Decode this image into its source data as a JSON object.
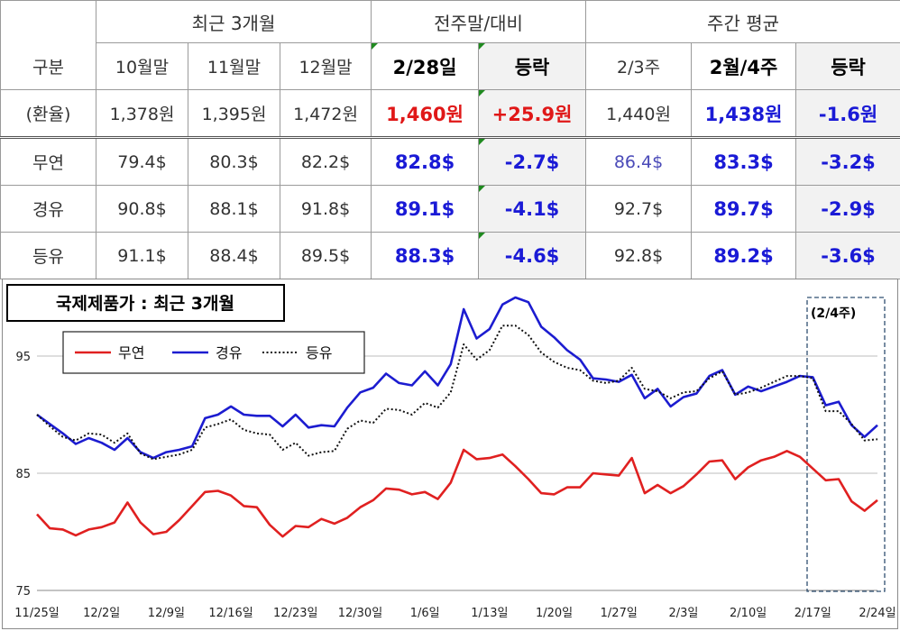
{
  "table": {
    "groups": [
      "최근 3개월",
      "전주말/대비",
      "주간 평균"
    ],
    "header": [
      "구분",
      "10월말",
      "11월말",
      "12월말",
      "2/28일",
      "등락",
      "2/3주",
      "2월/4주",
      "등락"
    ],
    "rows": [
      {
        "label": "(환율)",
        "cells": [
          "1,378원",
          "1,395원",
          "1,472원",
          "1,460원",
          "+25.9원",
          "1,440원",
          "1,438원",
          "-1.6원"
        ]
      },
      {
        "label": "무연",
        "cells": [
          "79.4$",
          "80.3$",
          "82.2$",
          "82.8$",
          "-2.7$",
          "86.4$",
          "83.3$",
          "-3.2$"
        ]
      },
      {
        "label": "경유",
        "cells": [
          "90.8$",
          "88.1$",
          "91.8$",
          "89.1$",
          "-4.1$",
          "92.7$",
          "89.7$",
          "-2.9$"
        ]
      },
      {
        "label": "등유",
        "cells": [
          "91.1$",
          "88.4$",
          "89.5$",
          "88.3$",
          "-4.6$",
          "92.8$",
          "89.2$",
          "-3.6$"
        ]
      }
    ]
  },
  "chart_data": {
    "type": "line",
    "title": "국제제품가 : 최근 3개월",
    "annotation": "(2/4주)",
    "legend_position": "top-left",
    "grid": true,
    "ylim": [
      75,
      100
    ],
    "yticks": [
      75,
      85,
      95
    ],
    "xticks": [
      "11/25일",
      "12/2일",
      "12/9일",
      "12/16일",
      "12/23일",
      "12/30일",
      "1/6일",
      "1/13일",
      "1/20일",
      "1/27일",
      "2/3일",
      "2/10일",
      "2/17일",
      "2/24일"
    ],
    "colors": {
      "무연": "#e02020",
      "경유": "#1c1cd0",
      "등유": "#111111"
    },
    "series": [
      {
        "name": "무연",
        "style": "solid",
        "values": [
          81.5,
          80.3,
          80.2,
          79.7,
          80.2,
          80.4,
          80.8,
          82.5,
          80.8,
          79.8,
          80.0,
          81.0,
          82.2,
          83.4,
          83.5,
          83.1,
          82.2,
          82.1,
          80.6,
          79.6,
          80.5,
          80.4,
          81.1,
          80.7,
          81.2,
          82.1,
          82.7,
          83.7,
          83.6,
          83.2,
          83.4,
          82.8,
          84.2,
          87.0,
          86.2,
          86.3,
          86.6,
          85.6,
          84.5,
          83.3,
          83.2,
          83.8,
          83.8,
          85.0,
          84.9,
          84.8,
          86.3,
          83.3,
          84.0,
          83.3,
          83.9,
          84.9,
          86.0,
          86.1,
          84.5,
          85.5,
          86.1,
          86.4,
          86.9,
          86.4,
          85.4,
          84.4,
          84.5,
          82.6,
          81.8,
          82.7
        ]
      },
      {
        "name": "경유",
        "style": "solid",
        "values": [
          90.0,
          89.2,
          88.4,
          87.5,
          88.0,
          87.6,
          87.0,
          88.0,
          86.8,
          86.3,
          86.8,
          87.0,
          87.3,
          89.7,
          90.0,
          90.7,
          90.0,
          89.9,
          89.9,
          89.0,
          90.0,
          88.9,
          89.1,
          89.0,
          90.6,
          91.9,
          92.3,
          93.5,
          92.7,
          92.5,
          93.7,
          92.5,
          94.3,
          99.0,
          96.5,
          97.3,
          99.4,
          100.0,
          99.6,
          97.5,
          96.6,
          95.5,
          94.7,
          93.1,
          93.0,
          92.8,
          93.4,
          91.4,
          92.2,
          90.7,
          91.5,
          91.8,
          93.3,
          93.8,
          91.7,
          92.4,
          92.0,
          92.4,
          92.8,
          93.3,
          93.2,
          90.8,
          91.1,
          89.1,
          88.1,
          89.1
        ]
      },
      {
        "name": "등유",
        "style": "dotted",
        "values": [
          90.0,
          89.0,
          88.1,
          87.8,
          88.4,
          88.3,
          87.6,
          88.4,
          86.7,
          86.2,
          86.4,
          86.6,
          87.0,
          88.9,
          89.2,
          89.6,
          88.7,
          88.4,
          88.3,
          87.0,
          87.6,
          86.5,
          86.8,
          86.9,
          88.8,
          89.5,
          89.3,
          90.5,
          90.4,
          90.0,
          91.0,
          90.6,
          91.9,
          96.0,
          94.7,
          95.5,
          97.6,
          97.6,
          96.8,
          95.3,
          94.5,
          94.0,
          93.8,
          92.9,
          92.7,
          92.9,
          94.0,
          92.2,
          92.0,
          91.4,
          91.9,
          92.0,
          93.1,
          93.7,
          91.7,
          91.9,
          92.3,
          92.8,
          93.3,
          93.3,
          93.1,
          90.3,
          90.3,
          89.2,
          87.8,
          87.9
        ]
      }
    ]
  }
}
